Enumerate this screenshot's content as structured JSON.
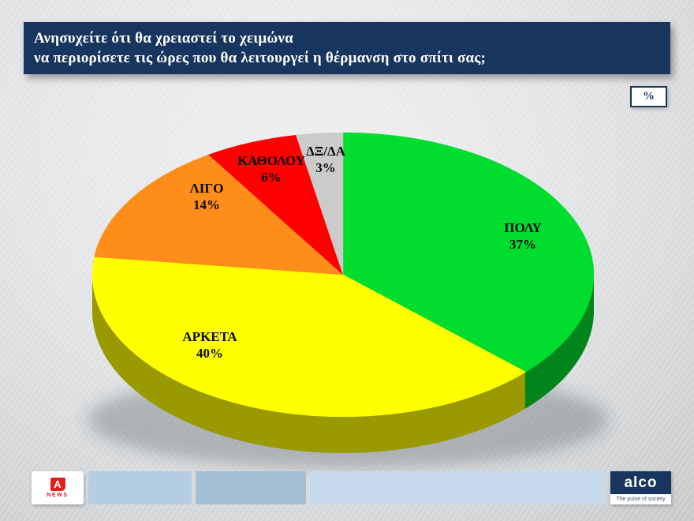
{
  "header": {
    "title_line1": "Ανησυχείτε ότι θα χρειαστεί το χειμώνα",
    "title_line2": "να περιορίσετε τις ώρες που θα λειτουργεί η θέρμανση στο σπίτι σας;"
  },
  "unit_badge": "%",
  "chart_data": {
    "type": "pie",
    "style": "3d",
    "title": "Ανησυχείτε ότι θα χρειαστεί το χειμώνα να περιορίσετε τις ώρες που θα λειτουργεί η θέρμανση στο σπίτι σας;",
    "unit": "%",
    "labels": [
      "ΠΟΛΥ",
      "ΑΡΚΕΤΑ",
      "ΛΙΓΟ",
      "ΚΑΘΟΛΟΥ",
      "ΔΞ/ΔΑ"
    ],
    "values": [
      37,
      40,
      14,
      6,
      3
    ],
    "display_values": [
      "37%",
      "40%",
      "14%",
      "6%",
      "3%"
    ],
    "colors": [
      "#00dd2e",
      "#ffff00",
      "#ff8d1a",
      "#ff0000",
      "#cbcbcb"
    ],
    "start_angle": "top",
    "direction": "clockwise",
    "legend": "none"
  },
  "footer": {
    "alpha_logo_letter": "A",
    "alpha_logo_text": "NEWS",
    "alco_logo_text": "alco",
    "alco_tagline": "The pulse of society"
  },
  "colors": {
    "banner_navy": "#17355e",
    "background_gray": "#e3e5e7",
    "footer_bar_1": "#b5cde1",
    "footer_bar_2": "#a3bfd6",
    "footer_bar_3": "#c6daeb",
    "alpha_red": "#e0201f"
  }
}
